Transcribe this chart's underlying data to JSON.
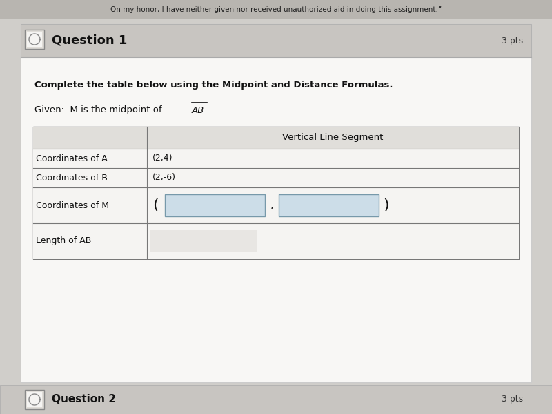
{
  "bg_outer": "#d0ceca",
  "bg_inner": "#f0eeec",
  "bg_white": "#ffffff",
  "bg_header": "#c8c5c0",
  "bg_table_row": "#f5f4f2",
  "bg_table_header_row": "#e8e6e3",
  "bg_input_box": "#ccdde8",
  "text_dark": "#111111",
  "text_medium": "#333333",
  "banner_text": "On my honor, I have neither given nor received unauthorized aid in doing this assignment.”",
  "q1_label": "Question 1",
  "pts_label": "3 pts",
  "instruction": "Complete the table below using the Midpoint and Distance Formulas.",
  "given_prefix": "Given:  M is the midpoint of ",
  "ab_label": "AB",
  "col_header": "Vertical Line Segment",
  "row_labels": [
    "Coordinates of A",
    "Coordinates of B",
    "Coordinates of M",
    "Length of AB"
  ],
  "row_values": [
    "(2,4)",
    "(2,-6)",
    null,
    null
  ],
  "q2_label": "Question 2",
  "q2_pts": "3 pts",
  "border_color": "#888880",
  "line_color": "#aaaaaa"
}
